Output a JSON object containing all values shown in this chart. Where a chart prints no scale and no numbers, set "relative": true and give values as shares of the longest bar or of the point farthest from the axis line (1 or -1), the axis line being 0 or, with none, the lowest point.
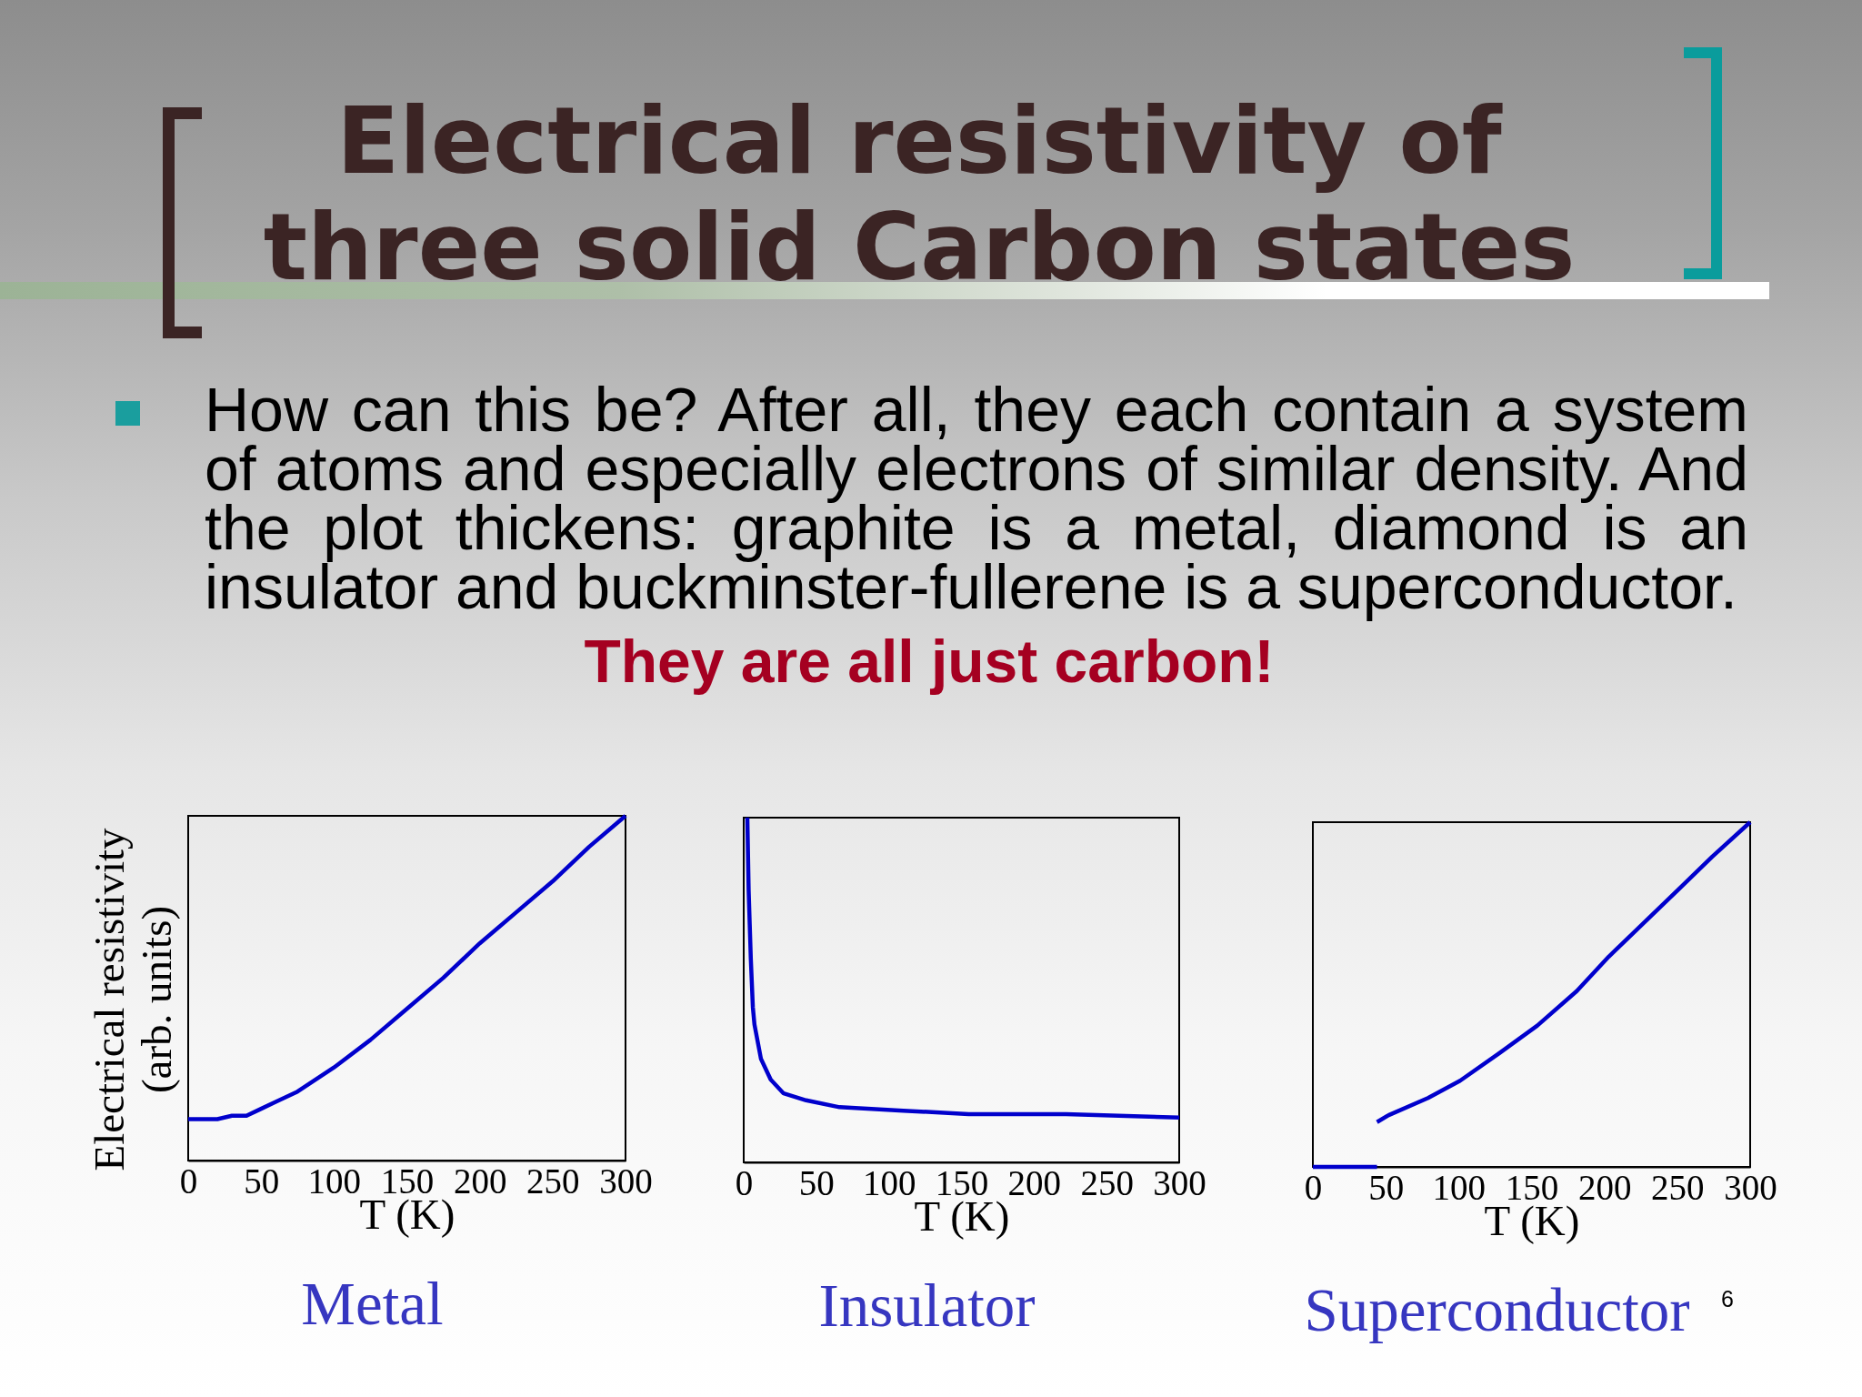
{
  "chart_data": [
    {
      "type": "other",
      "title": "Electrical resistivity of three solid Carbon states",
      "annotations": [
        "How can this be? After all, they each contain a system of atoms and especially electrons of similar density. And the plot thickens: graphite is a metal, diamond is an insulator and buckminster-fullerene is a superconductor.",
        "They are all just carbon!",
        "6"
      ]
    },
    {
      "type": "line",
      "title": "Metal",
      "xlabel": "T (K)",
      "ylabel": "Electrical resistivity\n(arb. units)",
      "x": [
        0,
        20,
        30,
        40,
        50,
        60,
        75,
        100,
        125,
        150,
        175,
        200,
        225,
        250,
        275,
        300
      ],
      "values": [
        0.12,
        0.12,
        0.13,
        0.13,
        0.15,
        0.17,
        0.2,
        0.27,
        0.35,
        0.44,
        0.53,
        0.63,
        0.72,
        0.81,
        0.91,
        1
      ],
      "color": "#0000cc",
      "xlim": [
        0,
        300
      ],
      "xticks": [
        0,
        50,
        100,
        150,
        200,
        250,
        300
      ],
      "relative": true,
      "tick_labels": "x"
    },
    {
      "type": "line",
      "title": "Insulator",
      "xlabel": "T (K)",
      "x": [
        2.5,
        3.4,
        4.9,
        6.3,
        7.4,
        11.9,
        18.6,
        27.5,
        43,
        66,
        110,
        155,
        222,
        300
      ],
      "values": [
        1,
        0.79,
        0.59,
        0.45,
        0.4,
        0.3,
        0.24,
        0.2,
        0.18,
        0.16,
        0.15,
        0.14,
        0.14,
        0.13
      ],
      "color": "#0000cc",
      "xlim": [
        0,
        300
      ],
      "xticks": [
        0,
        50,
        100,
        150,
        200,
        250,
        300
      ],
      "relative": true,
      "tick_labels": "x"
    },
    {
      "type": "line",
      "title": "Superconductor",
      "xlabel": "T (K)",
      "series": [
        {
          "color": "#0000cc",
          "x": [
            0,
            44
          ],
          "values": [
            0,
            0
          ]
        },
        {
          "color": "#0000cc",
          "x": [
            44,
            52,
            79,
            101,
            128,
            154,
            181,
            203,
            230,
            252,
            274,
            300
          ],
          "values": [
            0.13,
            0.15,
            0.2,
            0.25,
            0.33,
            0.41,
            0.51,
            0.61,
            0.72,
            0.81,
            0.9,
            1
          ]
        }
      ],
      "xlim": [
        0,
        300
      ],
      "xticks": [
        0,
        50,
        100,
        150,
        200,
        250,
        300
      ],
      "relative": true,
      "tick_labels": "x"
    }
  ]
}
